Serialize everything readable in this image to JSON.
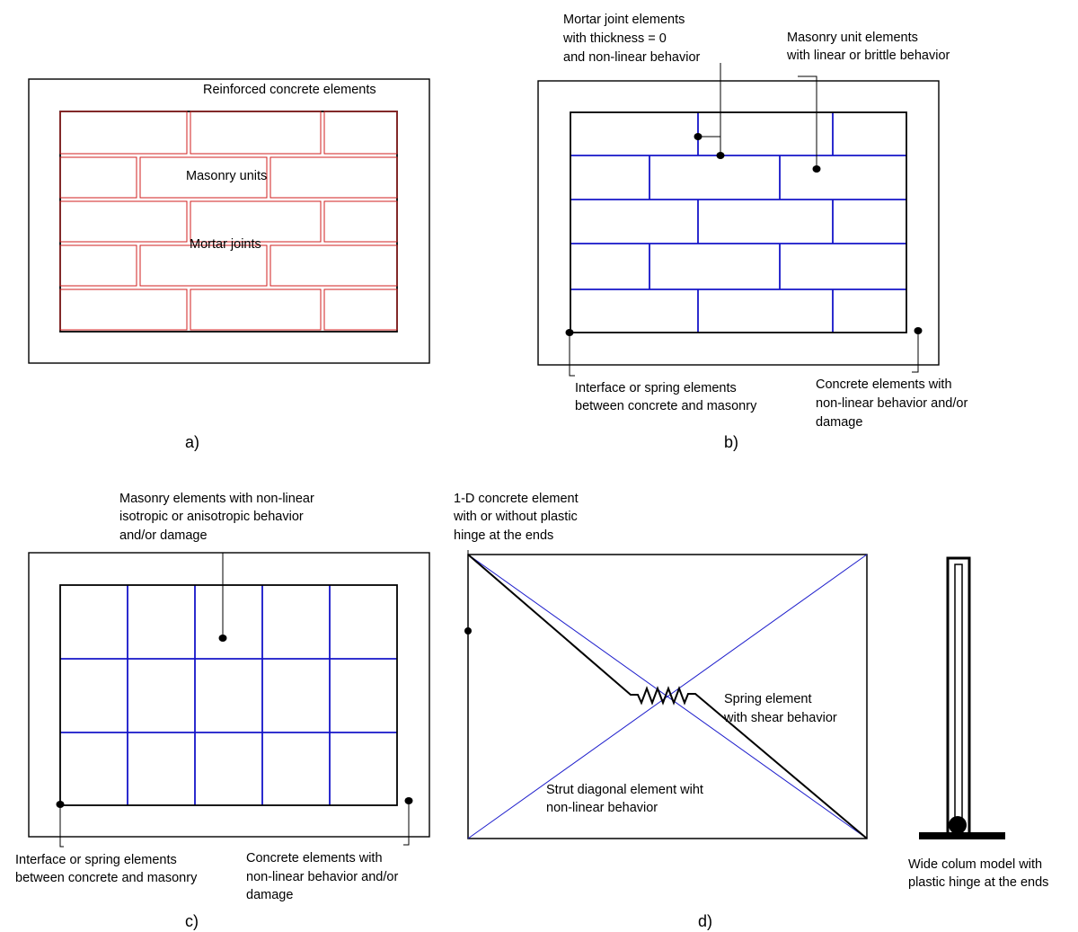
{
  "colors": {
    "frame": "#000000",
    "brick": "#d21f1f",
    "mesh": "#1414c8",
    "strut": "#1e1ecc"
  },
  "panel_a": {
    "concrete_label": "Reinforced concrete elements",
    "units_label": "Masonry units",
    "joints_label": "Mortar joints",
    "caption": "a)"
  },
  "panel_b": {
    "mortar_label": [
      "Mortar joint elements",
      "with thickness = 0",
      "and non-linear behavior"
    ],
    "unit_label": [
      "Masonry unit elements",
      "with linear or brittle behavior"
    ],
    "interface_label": [
      "Interface or spring  elements",
      "between  concrete and masonry"
    ],
    "concrete_label": [
      "Concrete elements with",
      "non-linear behavior and/or",
      "damage"
    ],
    "caption": "b)"
  },
  "panel_c": {
    "masonry_label": [
      "Masonry elements with non-linear",
      "isotropic or anisotropic behavior",
      "and/or damage"
    ],
    "interface_label": [
      "Interface or spring  elements",
      "between  concrete and masonry"
    ],
    "concrete_label": [
      "Concrete elements with",
      "non-linear behavior and/or",
      "damage"
    ],
    "caption": "c)"
  },
  "panel_d": {
    "element_label": [
      "1-D concrete element",
      "with or without plastic",
      "hinge at the ends"
    ],
    "spring_label": [
      "Spring element",
      "with shear behavior"
    ],
    "strut_label": [
      "Strut diagonal element wiht",
      "non-linear behavior"
    ],
    "column_label": [
      "Wide colum model with",
      "plastic hinge at the ends"
    ],
    "caption": "d)"
  }
}
